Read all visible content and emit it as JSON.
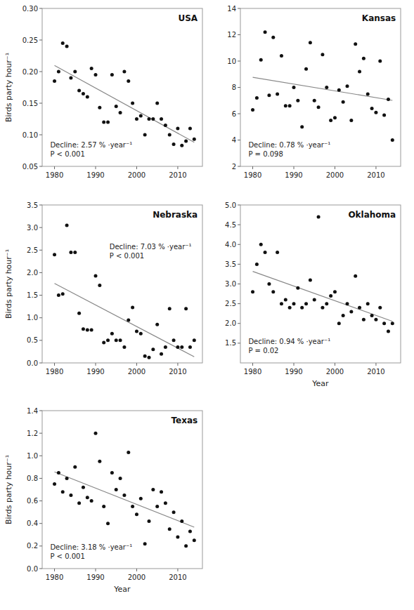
{
  "chart_data": [
    {
      "type": "scatter",
      "title": "USA",
      "annotations": [
        "Decline: 2.57 % ·year⁻¹",
        "P < 0.001"
      ],
      "ylabel": "Birds party hour⁻¹",
      "xlim": [
        1977,
        2016
      ],
      "xticks": [
        1980,
        1990,
        2000,
        2010
      ],
      "ylim": [
        0.05,
        0.3
      ],
      "yticks": [
        0.05,
        {
          "value": 0.1,
          "label": "0.10"
        },
        0.15,
        {
          "value": 0.2,
          "label": "0.20"
        },
        0.25,
        {
          "value": 0.3,
          "label": "0.30"
        }
      ],
      "grid": false,
      "series": [
        {
          "type": "line",
          "color": "#888888",
          "x": [
            1980,
            2014
          ],
          "values": [
            0.2098,
            0.0881
          ]
        },
        {
          "type": "scatter",
          "color": "#111111",
          "x": [
            1980,
            1981,
            1982,
            1983,
            1984,
            1985,
            1986,
            1987,
            1988,
            1989,
            1990,
            1991,
            1992,
            1993,
            1994,
            1995,
            1996,
            1997,
            1998,
            1999,
            2000,
            2001,
            2002,
            2003,
            2004,
            2005,
            2006,
            2007,
            2008,
            2009,
            2010,
            2011,
            2012,
            2013,
            2014
          ],
          "values": [
            0.185,
            0.2,
            0.245,
            0.24,
            0.19,
            0.2,
            0.17,
            0.165,
            0.16,
            0.205,
            0.195,
            0.143,
            0.12,
            0.12,
            0.195,
            0.145,
            0.135,
            0.2,
            0.185,
            0.15,
            0.125,
            0.13,
            0.1,
            0.125,
            0.125,
            0.15,
            0.125,
            0.115,
            0.1,
            0.085,
            0.11,
            0.083,
            0.09,
            0.11,
            0.093
          ]
        }
      ]
    },
    {
      "type": "scatter",
      "title": "Kansas",
      "annotations": [
        "Decline: 0.78 % ·year⁻¹",
        "P = 0.098"
      ],
      "xlim": [
        1977,
        2016
      ],
      "xticks": [
        1980,
        1990,
        2000,
        2010
      ],
      "ylim": [
        2,
        14
      ],
      "yticks": [
        2,
        4,
        6,
        8,
        10,
        12,
        14
      ],
      "grid": false,
      "series": [
        {
          "type": "line",
          "color": "#888888",
          "x": [
            1980,
            2014
          ],
          "values": [
            8.7629,
            7.0143
          ]
        },
        {
          "type": "scatter",
          "color": "#111111",
          "x": [
            1980,
            1981,
            1982,
            1983,
            1984,
            1985,
            1986,
            1987,
            1988,
            1989,
            1990,
            1991,
            1992,
            1993,
            1994,
            1995,
            1996,
            1997,
            1998,
            1999,
            2000,
            2001,
            2002,
            2003,
            2004,
            2005,
            2006,
            2007,
            2008,
            2009,
            2010,
            2011,
            2012,
            2013,
            2014
          ],
          "values": [
            6.3,
            7.2,
            10.1,
            12.2,
            7.4,
            11.8,
            7.5,
            10.4,
            6.6,
            6.6,
            8.0,
            7.0,
            5.0,
            9.4,
            11.4,
            7.0,
            6.5,
            10.5,
            8.0,
            5.5,
            5.7,
            7.8,
            6.9,
            8.1,
            5.5,
            11.3,
            9.2,
            10.2,
            7.5,
            6.4,
            6.1,
            10.0,
            5.9,
            7.1,
            4.0
          ]
        }
      ]
    },
    {
      "type": "scatter",
      "title": "Nebraska",
      "annotations": [
        "Decline: 7.03 % ·year⁻¹",
        "P < 0.001"
      ],
      "ylabel": "Birds party hour⁻¹",
      "xlim": [
        1977,
        2016
      ],
      "xticks": [
        1980,
        1990,
        2000,
        2010
      ],
      "ylim": [
        0.0,
        3.5
      ],
      "yticks": [
        {
          "value": 0,
          "label": "0.0"
        },
        0.5,
        {
          "value": 1,
          "label": "1.0"
        },
        1.5,
        {
          "value": 2,
          "label": "2.0"
        },
        2.5,
        {
          "value": 3,
          "label": "3.0"
        },
        3.5
      ],
      "grid": false,
      "series": [
        {
          "type": "line",
          "color": "#888888",
          "x": [
            1980,
            2014
          ],
          "values": [
            1.7626,
            0.1368
          ]
        },
        {
          "type": "scatter",
          "color": "#111111",
          "x": [
            1980,
            1981,
            1982,
            1983,
            1984,
            1985,
            1986,
            1987,
            1988,
            1989,
            1990,
            1991,
            1992,
            1993,
            1994,
            1995,
            1996,
            1997,
            1998,
            1999,
            2000,
            2001,
            2002,
            2003,
            2004,
            2005,
            2006,
            2007,
            2008,
            2009,
            2010,
            2011,
            2012,
            2013,
            2014
          ],
          "values": [
            2.4,
            1.5,
            1.53,
            3.05,
            2.45,
            2.45,
            1.1,
            0.75,
            0.73,
            0.73,
            1.93,
            1.72,
            0.45,
            0.5,
            0.65,
            0.5,
            0.5,
            0.35,
            0.95,
            1.23,
            0.7,
            0.65,
            0.15,
            0.12,
            0.3,
            0.85,
            0.2,
            0.35,
            1.2,
            0.5,
            0.35,
            0.35,
            1.2,
            0.35,
            0.5
          ]
        }
      ]
    },
    {
      "type": "scatter",
      "title": "Oklahoma",
      "annotations": [
        "Decline: 0.94 % ·year⁻¹",
        "P = 0.02"
      ],
      "xlabel": "Year",
      "xlim": [
        1977,
        2016
      ],
      "xticks": [
        1980,
        1990,
        2000,
        2010
      ],
      "ylim": [
        1.0,
        5.0
      ],
      "yticks": [
        1.5,
        {
          "value": 2,
          "label": "2.0"
        },
        2.5,
        {
          "value": 3,
          "label": "3.0"
        },
        3.5,
        {
          "value": 4,
          "label": "4.0"
        },
        4.5,
        {
          "value": 5,
          "label": "5.0"
        }
      ],
      "grid": false,
      "series": [
        {
          "type": "line",
          "color": "#888888",
          "x": [
            1980,
            2014
          ],
          "values": [
            3.3176,
            2.0538
          ]
        },
        {
          "type": "scatter",
          "color": "#111111",
          "x": [
            1980,
            1981,
            1982,
            1983,
            1984,
            1985,
            1986,
            1987,
            1988,
            1989,
            1990,
            1991,
            1992,
            1993,
            1994,
            1995,
            1996,
            1997,
            1998,
            1999,
            2000,
            2001,
            2002,
            2003,
            2004,
            2005,
            2006,
            2007,
            2008,
            2009,
            2010,
            2011,
            2012,
            2013,
            2014
          ],
          "values": [
            2.8,
            3.5,
            4.0,
            3.8,
            3.0,
            2.8,
            3.8,
            2.5,
            2.6,
            2.4,
            2.5,
            2.9,
            2.4,
            2.5,
            3.1,
            2.6,
            4.7,
            2.4,
            2.5,
            2.7,
            2.8,
            2.0,
            2.2,
            2.5,
            2.3,
            3.2,
            2.4,
            2.1,
            2.5,
            2.2,
            2.1,
            2.4,
            2.0,
            1.8,
            2.0
          ]
        }
      ]
    },
    {
      "type": "scatter",
      "title": "Texas",
      "annotations": [
        "Decline: 3.18 % ·year⁻¹",
        "P < 0.001"
      ],
      "ylabel": "Birds party hour⁻¹",
      "xlabel": "Year",
      "xlim": [
        1977,
        2016
      ],
      "xticks": [
        1980,
        1990,
        2000,
        2010
      ],
      "ylim": [
        0.0,
        1.4
      ],
      "yticks": [
        {
          "value": 0,
          "label": "0.0"
        },
        0.2,
        0.4,
        0.6,
        0.8,
        {
          "value": 1,
          "label": "1.0"
        },
        1.2,
        1.4
      ],
      "grid": false,
      "series": [
        {
          "type": "line",
          "color": "#888888",
          "x": [
            1980,
            2014
          ],
          "values": [
            0.857,
            0.367
          ]
        },
        {
          "type": "scatter",
          "color": "#111111",
          "x": [
            1980,
            1981,
            1982,
            1983,
            1984,
            1985,
            1986,
            1987,
            1988,
            1989,
            1990,
            1991,
            1992,
            1993,
            1994,
            1995,
            1996,
            1997,
            1998,
            1999,
            2000,
            2001,
            2002,
            2003,
            2004,
            2005,
            2006,
            2007,
            2008,
            2009,
            2010,
            2011,
            2012,
            2013,
            2014
          ],
          "values": [
            0.75,
            0.85,
            0.68,
            0.8,
            0.65,
            0.9,
            0.58,
            0.72,
            0.63,
            0.6,
            1.2,
            0.95,
            0.55,
            0.4,
            0.85,
            0.7,
            0.8,
            0.65,
            1.03,
            0.55,
            0.48,
            0.62,
            0.22,
            0.42,
            0.7,
            0.55,
            0.68,
            0.58,
            0.35,
            0.5,
            0.28,
            0.42,
            0.2,
            0.33,
            0.25
          ]
        }
      ]
    }
  ]
}
